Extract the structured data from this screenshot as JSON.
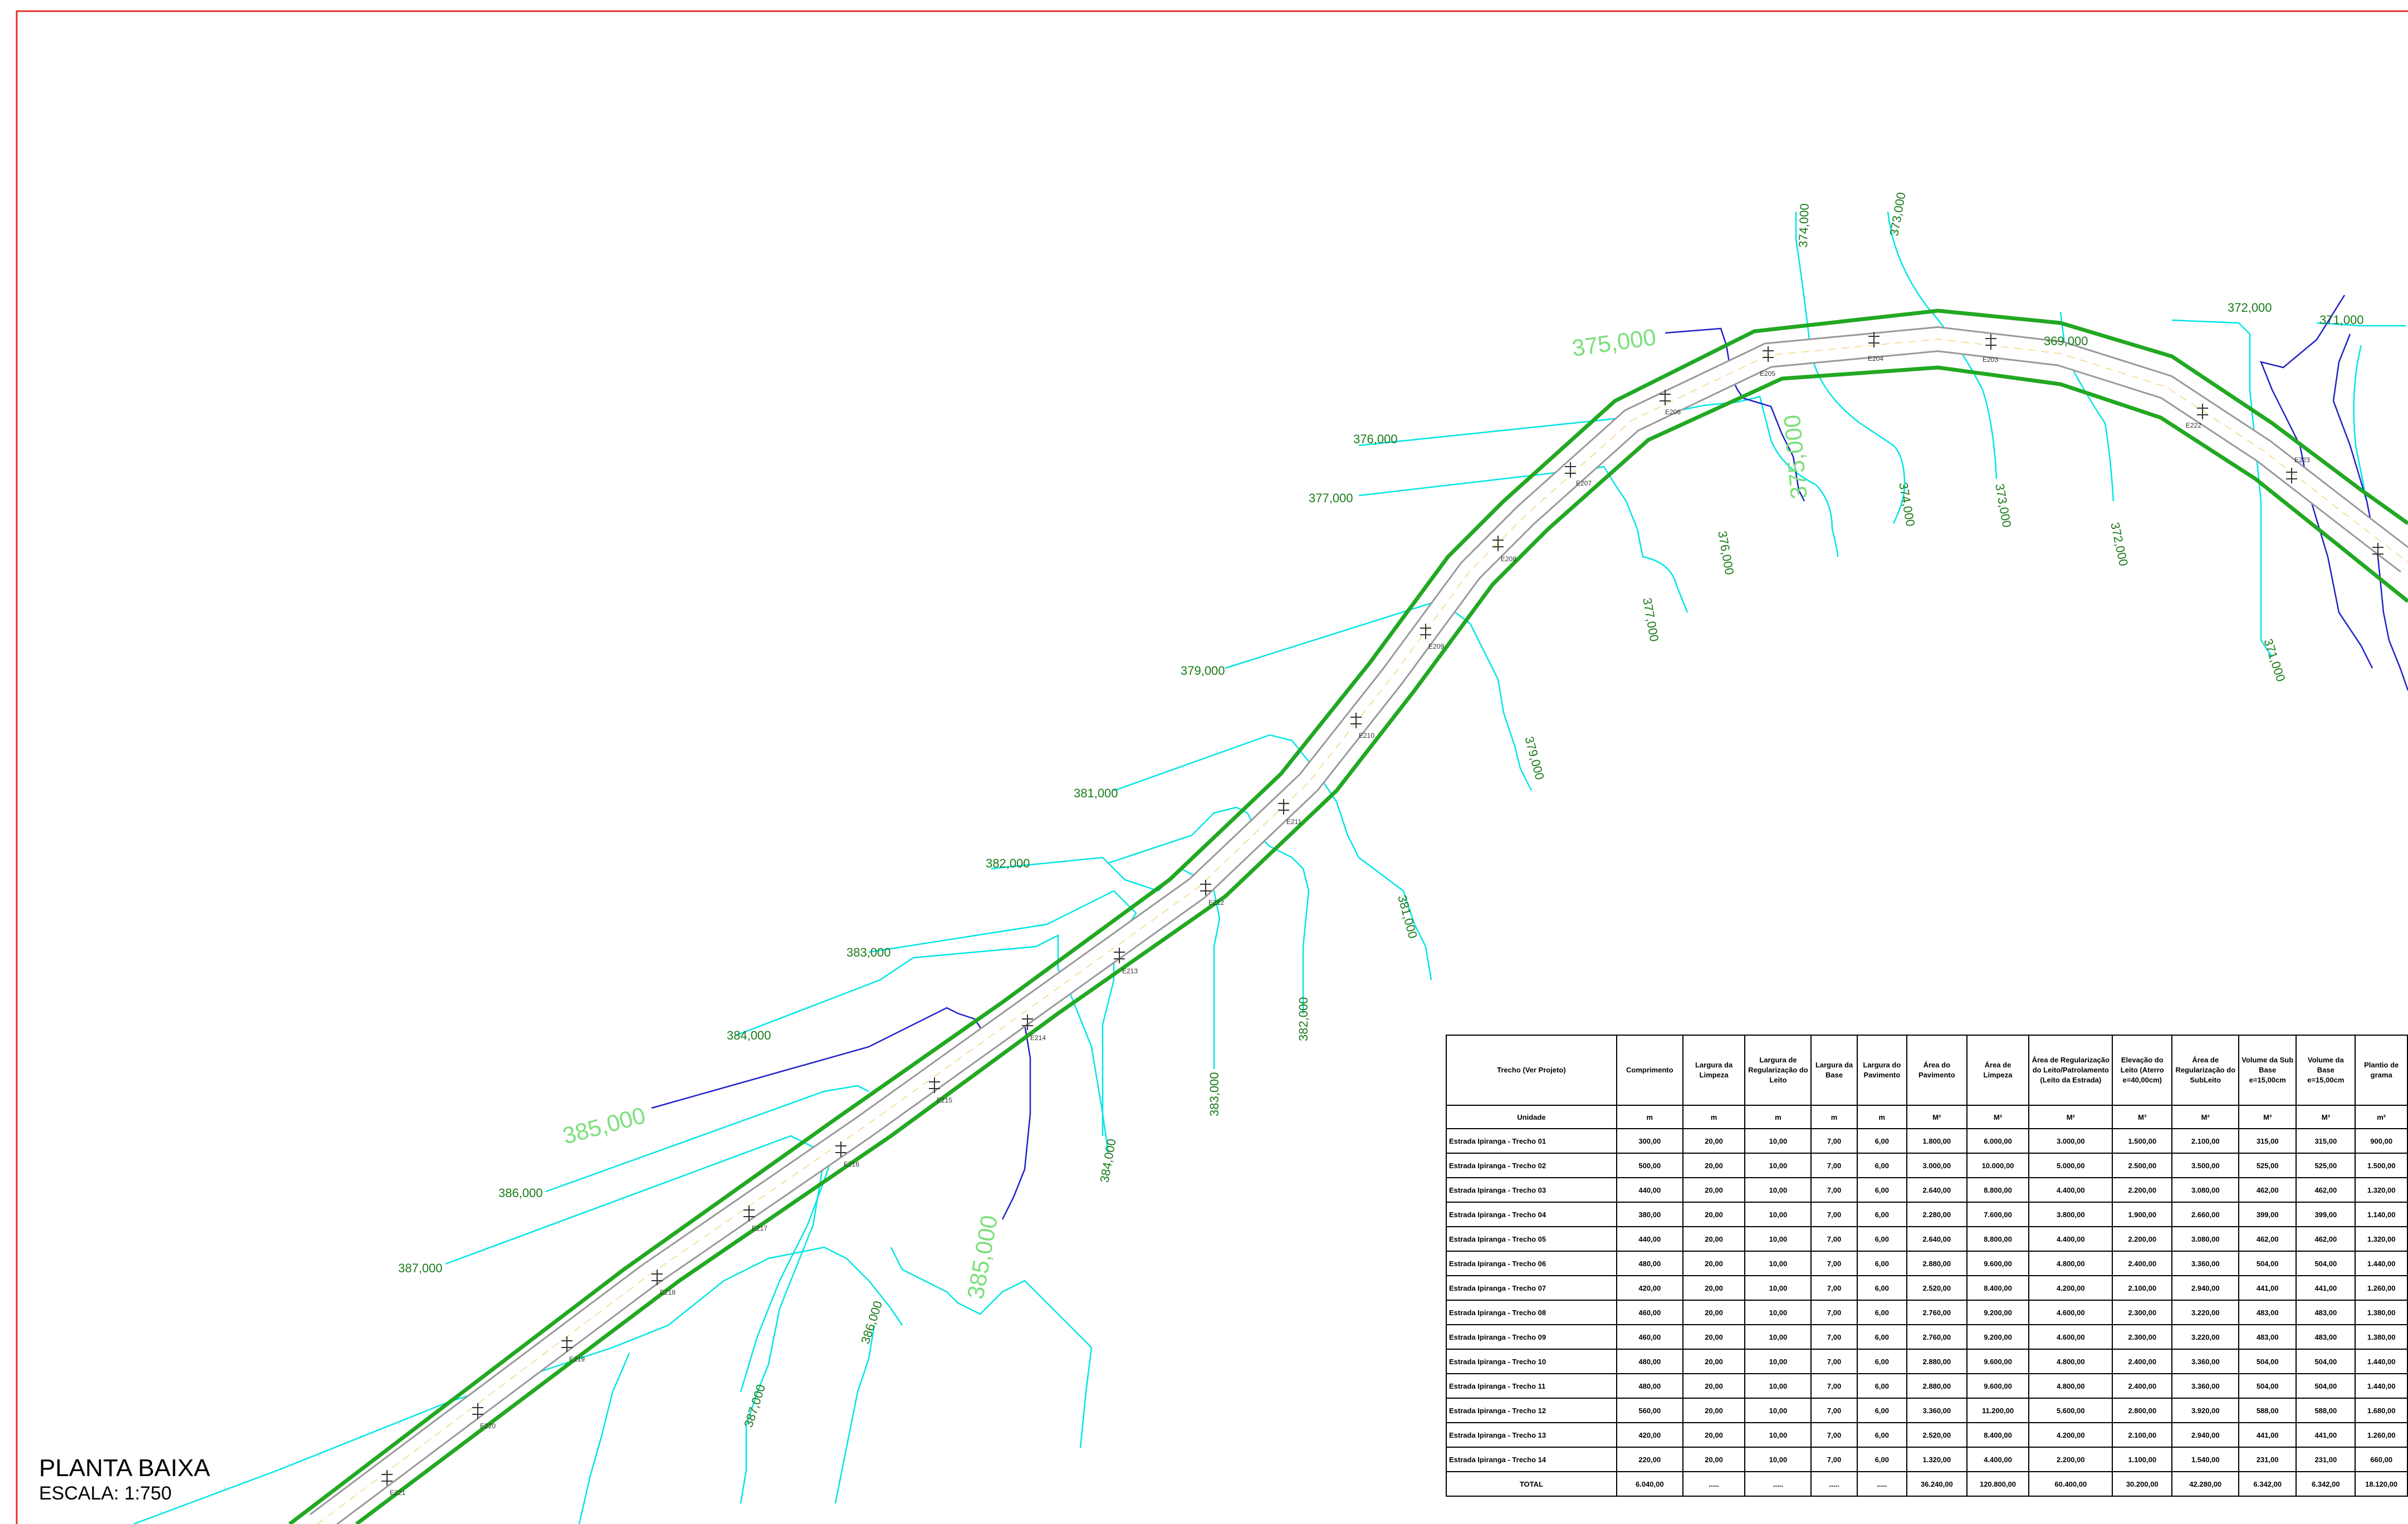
{
  "title_block": {
    "title": "PLANTA BAIXA",
    "scale": "ESCALA: 1:750"
  },
  "colors": {
    "border": "#e0302a",
    "road_edge": "#22a822",
    "contour": "#00e5e5",
    "drainage": "#1a1acc",
    "road_fill": "#ffffff",
    "road_line": "#888888"
  },
  "contour_labels": [
    "369,000",
    "371,000",
    "372,000",
    "373,000",
    "374,000",
    "376,000",
    "377,000",
    "379,000",
    "381,000",
    "382,000",
    "383,000",
    "384,000",
    "386,000",
    "387,000",
    "375,000",
    "385,000"
  ],
  "contour_labels_major": [
    "375,000",
    "385,000"
  ],
  "stations": [
    "E203",
    "E204",
    "E205",
    "E206",
    "E207",
    "E208",
    "E209",
    "E210",
    "E211",
    "E212",
    "E213",
    "E214",
    "E215",
    "E216",
    "E217",
    "E218",
    "E219",
    "E220",
    "E221",
    "E222",
    "E223"
  ],
  "table": {
    "headers": [
      "Trecho (Ver Projeto)",
      "Comprimento",
      "Largura da Limpeza",
      "Largura de Regularização do Leito",
      "Largura da Base",
      "Largura do Pavimento",
      "Área do Pavimento",
      "Área de Limpeza",
      "Área de Regularização do Leito/Patrolamento (Leito da Estrada)",
      "Elevação do Leito (Aterro e=40,00cm)",
      "Área de Regularização do SubLeito",
      "Volume da Sub Base e=15,00cm",
      "Volume da Base e=15,00cm",
      "Plantio de grama"
    ],
    "units": [
      "Unidade",
      "m",
      "m",
      "m",
      "m",
      "m",
      "M²",
      "M²",
      "M²",
      "M³",
      "M²",
      "M³",
      "M³",
      "m²"
    ],
    "rows": [
      [
        "Estrada Ipiranga - Trecho 01",
        "300,00",
        "20,00",
        "10,00",
        "7,00",
        "6,00",
        "1.800,00",
        "6.000,00",
        "3.000,00",
        "1.500,00",
        "2.100,00",
        "315,00",
        "315,00",
        "900,00"
      ],
      [
        "Estrada Ipiranga - Trecho 02",
        "500,00",
        "20,00",
        "10,00",
        "7,00",
        "6,00",
        "3.000,00",
        "10.000,00",
        "5.000,00",
        "2.500,00",
        "3.500,00",
        "525,00",
        "525,00",
        "1.500,00"
      ],
      [
        "Estrada Ipiranga - Trecho 03",
        "440,00",
        "20,00",
        "10,00",
        "7,00",
        "6,00",
        "2.640,00",
        "8.800,00",
        "4.400,00",
        "2.200,00",
        "3.080,00",
        "462,00",
        "462,00",
        "1.320,00"
      ],
      [
        "Estrada Ipiranga - Trecho 04",
        "380,00",
        "20,00",
        "10,00",
        "7,00",
        "6,00",
        "2.280,00",
        "7.600,00",
        "3.800,00",
        "1.900,00",
        "2.660,00",
        "399,00",
        "399,00",
        "1.140,00"
      ],
      [
        "Estrada Ipiranga - Trecho 05",
        "440,00",
        "20,00",
        "10,00",
        "7,00",
        "6,00",
        "2.640,00",
        "8.800,00",
        "4.400,00",
        "2.200,00",
        "3.080,00",
        "462,00",
        "462,00",
        "1.320,00"
      ],
      [
        "Estrada Ipiranga - Trecho 06",
        "480,00",
        "20,00",
        "10,00",
        "7,00",
        "6,00",
        "2.880,00",
        "9.600,00",
        "4.800,00",
        "2.400,00",
        "3.360,00",
        "504,00",
        "504,00",
        "1.440,00"
      ],
      [
        "Estrada Ipiranga - Trecho 07",
        "420,00",
        "20,00",
        "10,00",
        "7,00",
        "6,00",
        "2.520,00",
        "8.400,00",
        "4.200,00",
        "2.100,00",
        "2.940,00",
        "441,00",
        "441,00",
        "1.260,00"
      ],
      [
        "Estrada Ipiranga - Trecho 08",
        "460,00",
        "20,00",
        "10,00",
        "7,00",
        "6,00",
        "2.760,00",
        "9.200,00",
        "4.600,00",
        "2.300,00",
        "3.220,00",
        "483,00",
        "483,00",
        "1.380,00"
      ],
      [
        "Estrada Ipiranga - Trecho 09",
        "460,00",
        "20,00",
        "10,00",
        "7,00",
        "6,00",
        "2.760,00",
        "9.200,00",
        "4.600,00",
        "2.300,00",
        "3.220,00",
        "483,00",
        "483,00",
        "1.380,00"
      ],
      [
        "Estrada Ipiranga - Trecho 10",
        "480,00",
        "20,00",
        "10,00",
        "7,00",
        "6,00",
        "2.880,00",
        "9.600,00",
        "4.800,00",
        "2.400,00",
        "3.360,00",
        "504,00",
        "504,00",
        "1.440,00"
      ],
      [
        "Estrada Ipiranga - Trecho 11",
        "480,00",
        "20,00",
        "10,00",
        "7,00",
        "6,00",
        "2.880,00",
        "9.600,00",
        "4.800,00",
        "2.400,00",
        "3.360,00",
        "504,00",
        "504,00",
        "1.440,00"
      ],
      [
        "Estrada Ipiranga - Trecho 12",
        "560,00",
        "20,00",
        "10,00",
        "7,00",
        "6,00",
        "3.360,00",
        "11.200,00",
        "5.600,00",
        "2.800,00",
        "3.920,00",
        "588,00",
        "588,00",
        "1.680,00"
      ],
      [
        "Estrada Ipiranga - Trecho 13",
        "420,00",
        "20,00",
        "10,00",
        "7,00",
        "6,00",
        "2.520,00",
        "8.400,00",
        "4.200,00",
        "2.100,00",
        "2.940,00",
        "441,00",
        "441,00",
        "1.260,00"
      ],
      [
        "Estrada Ipiranga - Trecho 14",
        "220,00",
        "20,00",
        "10,00",
        "7,00",
        "6,00",
        "1.320,00",
        "4.400,00",
        "2.200,00",
        "1.100,00",
        "1.540,00",
        "231,00",
        "231,00",
        "660,00"
      ]
    ],
    "total": [
      "TOTAL",
      "6.040,00",
      ".....",
      ".....",
      ".....",
      ".....",
      "36.240,00",
      "120.800,00",
      "60.400,00",
      "30.200,00",
      "42.280,00",
      "6.342,00",
      "6.342,00",
      "18.120,00"
    ]
  }
}
